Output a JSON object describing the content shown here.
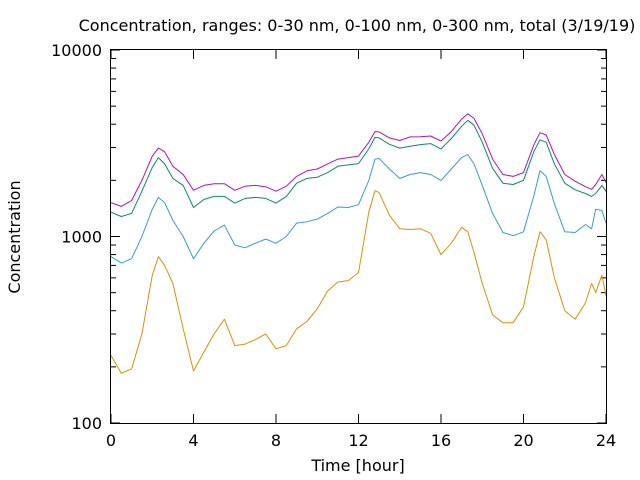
{
  "chart_data": {
    "type": "line",
    "title": "Concentration, ranges: 0-30 nm, 0-100 nm, 0-300 nm, total (3/19/19)",
    "xlabel": "Time [hour]",
    "ylabel": "Concentration",
    "xlim": [
      0,
      24
    ],
    "ylim": [
      100,
      10000
    ],
    "yscale": "log",
    "grid": false,
    "x_ticks": [
      0,
      4,
      8,
      12,
      16,
      20,
      24
    ],
    "x_tick_labels": [
      "0",
      "4",
      "8",
      "12",
      "16",
      "20",
      "24"
    ],
    "y_ticks": [
      100,
      1000,
      10000
    ],
    "y_tick_labels": [
      "100",
      "1000",
      "10000"
    ],
    "series": [
      {
        "color": "#b010d0",
        "x": [
          0,
          0.5,
          1,
          1.5,
          2,
          2.3,
          2.6,
          3,
          3.5,
          4,
          4.5,
          5,
          5.5,
          6,
          6.5,
          7,
          7.5,
          8,
          8.5,
          9,
          9.5,
          10,
          10.5,
          11,
          11.5,
          12,
          12.5,
          12.8,
          13,
          13.5,
          14,
          14.5,
          15,
          15.5,
          16,
          16.5,
          17,
          17.3,
          17.6,
          18,
          18.5,
          19,
          19.5,
          20,
          20.5,
          20.8,
          21.1,
          21.5,
          22,
          22.5,
          23,
          23.3,
          23.5,
          23.8,
          24
        ],
        "values": [
          1520,
          1450,
          1560,
          2000,
          2700,
          2980,
          2850,
          2380,
          2150,
          1770,
          1880,
          1920,
          1920,
          1770,
          1860,
          1880,
          1850,
          1750,
          1860,
          2100,
          2250,
          2300,
          2450,
          2600,
          2650,
          2700,
          3200,
          3650,
          3640,
          3380,
          3270,
          3420,
          3430,
          3460,
          3250,
          3650,
          4260,
          4550,
          4300,
          3550,
          2600,
          2150,
          2100,
          2200,
          3100,
          3600,
          3500,
          2750,
          2150,
          1980,
          1850,
          1790,
          1900,
          2150,
          1950
        ]
      },
      {
        "color": "#009060",
        "x": [
          0,
          0.5,
          1,
          1.5,
          2,
          2.3,
          2.6,
          3,
          3.5,
          4,
          4.5,
          5,
          5.5,
          6,
          6.5,
          7,
          7.5,
          8,
          8.5,
          9,
          9.5,
          10,
          10.5,
          11,
          11.5,
          12,
          12.5,
          12.8,
          13,
          13.5,
          14,
          14.5,
          15,
          15.5,
          16,
          16.5,
          17,
          17.3,
          17.6,
          18,
          18.5,
          19,
          19.5,
          20,
          20.5,
          20.8,
          21.1,
          21.5,
          22,
          22.5,
          23,
          23.3,
          23.5,
          23.8,
          24
        ],
        "values": [
          1350,
          1280,
          1330,
          1750,
          2350,
          2650,
          2450,
          2050,
          1880,
          1430,
          1580,
          1640,
          1640,
          1510,
          1600,
          1620,
          1600,
          1510,
          1640,
          1930,
          2050,
          2080,
          2200,
          2380,
          2420,
          2460,
          2950,
          3400,
          3380,
          3120,
          2980,
          3050,
          3110,
          3150,
          2950,
          3350,
          3900,
          4200,
          3950,
          3200,
          2320,
          1930,
          1900,
          2000,
          2850,
          3300,
          3200,
          2450,
          1930,
          1780,
          1700,
          1640,
          1700,
          1880,
          1750
        ]
      },
      {
        "color": "#30a0d0",
        "x": [
          0,
          0.5,
          1,
          1.5,
          2,
          2.3,
          2.6,
          3,
          3.5,
          4,
          4.5,
          5,
          5.5,
          6,
          6.5,
          7,
          7.5,
          8,
          8.5,
          9,
          9.5,
          10,
          10.5,
          11,
          11.5,
          12,
          12.5,
          12.8,
          13,
          13.5,
          14,
          14.5,
          15,
          15.5,
          16,
          16.5,
          17,
          17.3,
          17.6,
          18,
          18.5,
          19,
          19.5,
          20,
          20.5,
          20.8,
          21.1,
          21.5,
          22,
          22.5,
          23,
          23.3,
          23.5,
          23.8,
          24
        ],
        "values": [
          780,
          720,
          760,
          1000,
          1400,
          1620,
          1520,
          1220,
          1000,
          760,
          920,
          1070,
          1150,
          900,
          870,
          920,
          970,
          920,
          1000,
          1180,
          1200,
          1240,
          1330,
          1440,
          1430,
          1480,
          2000,
          2600,
          2620,
          2300,
          2050,
          2150,
          2200,
          2150,
          2000,
          2300,
          2650,
          2750,
          2450,
          1880,
          1330,
          1050,
          1010,
          1060,
          1650,
          2250,
          2100,
          1500,
          1060,
          1050,
          1160,
          1100,
          1400,
          1380,
          1180
        ]
      },
      {
        "color": "#e09000",
        "x": [
          0,
          0.5,
          1,
          1.5,
          2,
          2.3,
          2.6,
          3,
          3.5,
          4,
          4.5,
          5,
          5.5,
          6,
          6.5,
          7,
          7.5,
          8,
          8.5,
          9,
          9.5,
          10,
          10.5,
          11,
          11.5,
          12,
          12.5,
          12.8,
          13,
          13.5,
          14,
          14.5,
          15,
          15.5,
          16,
          16.5,
          17,
          17.3,
          17.6,
          18,
          18.5,
          19,
          19.5,
          20,
          20.5,
          20.8,
          21.1,
          21.5,
          22,
          22.5,
          23,
          23.3,
          23.5,
          23.8,
          24
        ],
        "values": [
          230,
          185,
          195,
          300,
          620,
          780,
          700,
          560,
          320,
          190,
          240,
          300,
          360,
          260,
          265,
          280,
          300,
          250,
          260,
          320,
          350,
          410,
          510,
          570,
          580,
          640,
          1350,
          1760,
          1720,
          1300,
          1100,
          1090,
          1100,
          1040,
          800,
          920,
          1120,
          1060,
          820,
          560,
          380,
          345,
          345,
          420,
          780,
          1060,
          960,
          600,
          400,
          360,
          440,
          560,
          500,
          620,
          480
        ]
      }
    ]
  }
}
